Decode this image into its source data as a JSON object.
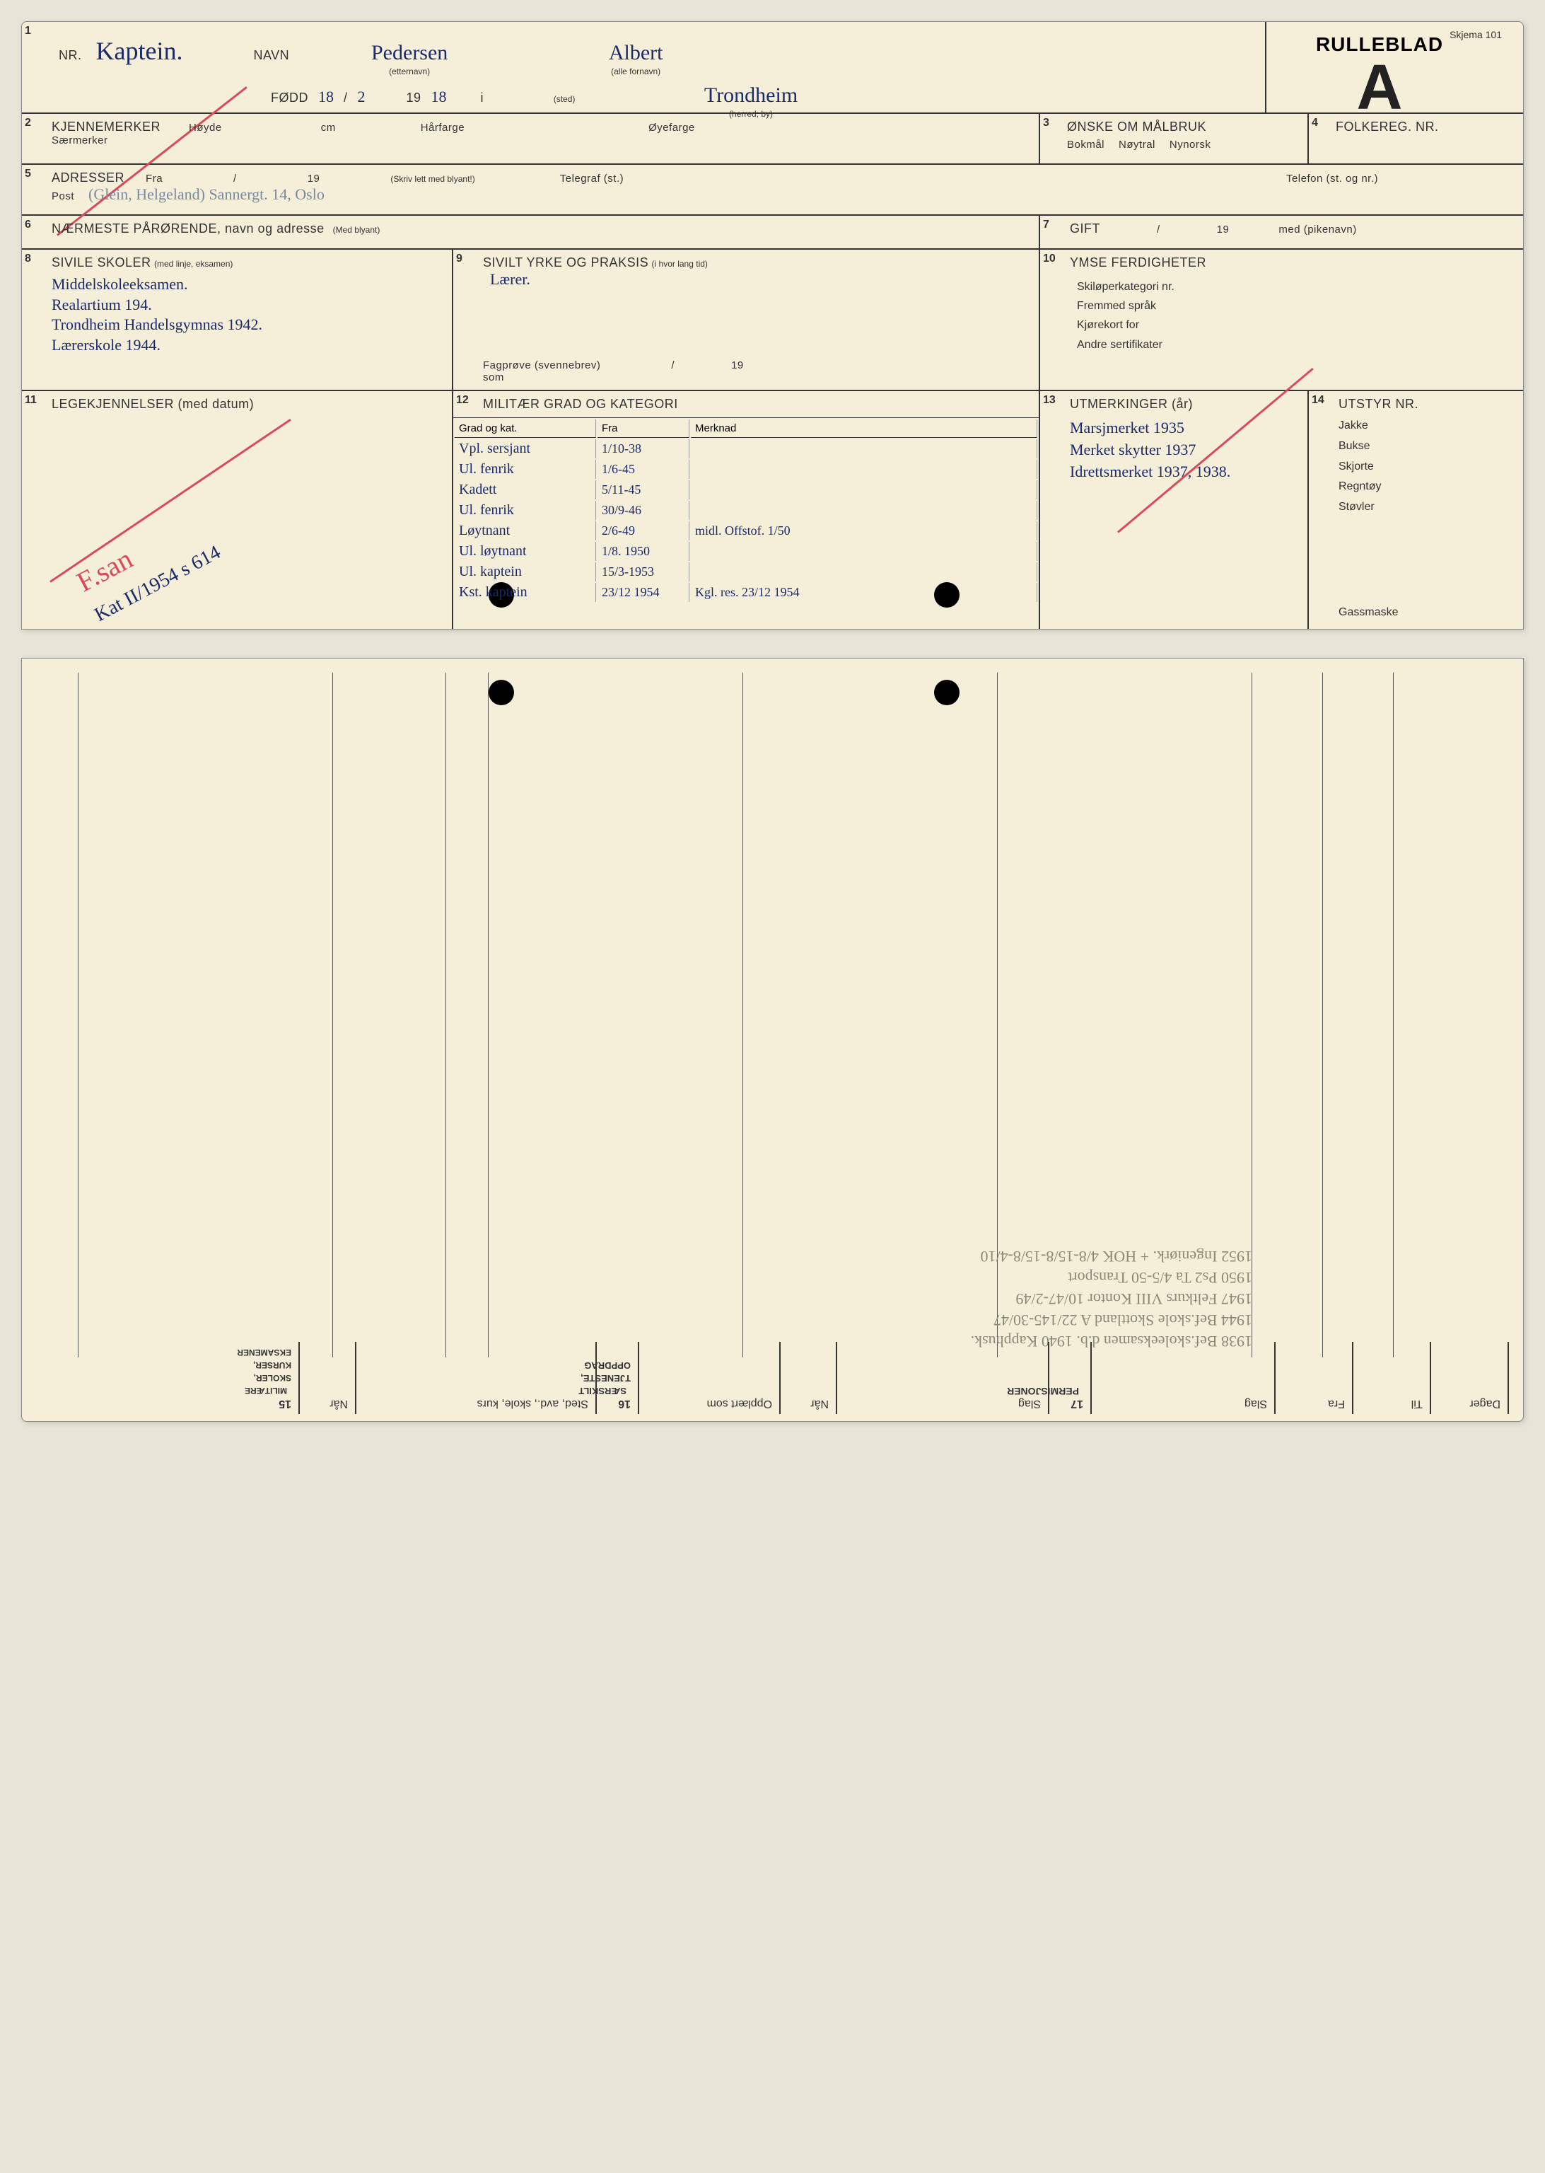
{
  "form_name": "Skjema 101",
  "title": "RULLEBLAD",
  "title_letter": "A",
  "section1": {
    "num": "1",
    "nr_label": "NR.",
    "nr_value": "Kaptein.",
    "navn_label": "NAVN",
    "etternavn_sub": "(etternavn)",
    "etternavn": "Pedersen",
    "fornavn_sub": "(alle fornavn)",
    "fornavn": "Albert",
    "fodd_label": "FØDD",
    "fodd_day": "18",
    "fodd_month": "2",
    "fodd_year_prefix": "19",
    "fodd_year": "18",
    "i_label": "i",
    "sted_sub": "(sted)",
    "by_sub": "(herred; by)",
    "by_value": "Trondheim"
  },
  "section2": {
    "num": "2",
    "label": "KJENNEMERKER",
    "hoyde": "Høyde",
    "cm": "cm",
    "harfarge": "Hårfarge",
    "oyefarge": "Øyefarge",
    "saermerker": "Særmerker"
  },
  "section3": {
    "num": "3",
    "label": "ØNSKE OM MÅLBRUK",
    "opt1": "Bokmål",
    "opt2": "Nøytral",
    "opt3": "Nynorsk"
  },
  "section4": {
    "num": "4",
    "label": "FOLKEREG. NR."
  },
  "section5": {
    "num": "5",
    "label": "ADRESSER",
    "fra": "Fra",
    "slash": "/",
    "year_prefix": "19",
    "note": "(Skriv lett med blyant!)",
    "telegraf": "Telegraf (st.)",
    "telefon": "Telefon (st. og nr.)",
    "post": "Post",
    "address_value": "(Glein, Helgeland)  Sannergt. 14, Oslo"
  },
  "section6": {
    "num": "6",
    "label": "NÆRMESTE PÅRØRENDE, navn og adresse",
    "sub": "(Med blyant)"
  },
  "section7": {
    "num": "7",
    "label": "GIFT",
    "slash": "/",
    "year_prefix": "19",
    "med": "med (pikenavn)"
  },
  "section8": {
    "num": "8",
    "label": "SIVILE SKOLER",
    "sub": "(med linje, eksamen)",
    "lines": [
      "Middelskoleeksamen.",
      "Realartium 194.",
      "Trondheim Handelsgymnas 1942.",
      "Lærerskole 1944."
    ]
  },
  "section9": {
    "num": "9",
    "label": "SIVILT YRKE OG PRAKSIS",
    "sub": "(i hvor lang tid)",
    "value": "Lærer.",
    "fagprove": "Fagprøve (svennebrev)",
    "slash": "/",
    "year_prefix": "19",
    "som": "som"
  },
  "section10": {
    "num": "10",
    "label": "YMSE FERDIGHETER",
    "items": [
      "Skiløperkategori nr.",
      "Fremmed språk",
      "Kjørekort for",
      "Andre sertifikater"
    ]
  },
  "section11": {
    "num": "11",
    "label": "LEGEKJENNELSER (med datum)",
    "annotation1": "F.san",
    "annotation2": "Kat II/1954 s 614"
  },
  "section12": {
    "num": "12",
    "label": "MILITÆR GRAD OG KATEGORI",
    "col1": "Grad og kat.",
    "col2": "Fra",
    "col3": "Merknad",
    "rows": [
      {
        "grad": "Vpl. sersjant",
        "fra": "1/10-38",
        "merk": ""
      },
      {
        "grad": "Ul. fenrik",
        "fra": "1/6-45",
        "merk": ""
      },
      {
        "grad": "Kadett",
        "fra": "5/11-45",
        "merk": ""
      },
      {
        "grad": "Ul. fenrik",
        "fra": "30/9-46",
        "merk": ""
      },
      {
        "grad": "Løytnant",
        "fra": "2/6-49",
        "merk": "midl. Offstof. 1/50"
      },
      {
        "grad": "Ul. løytnant",
        "fra": "1/8. 1950",
        "merk": ""
      },
      {
        "grad": "Ul. kaptein",
        "fra": "15/3-1953",
        "merk": ""
      },
      {
        "grad": "Kst. kaptein",
        "fra": "23/12 1954",
        "merk": "Kgl. res. 23/12 1954"
      }
    ]
  },
  "section13": {
    "num": "13",
    "label": "UTMERKINGER (år)",
    "lines": [
      "Marsjmerket 1935",
      "Merket skytter 1937",
      "Idrettsmerket 1937, 1938."
    ]
  },
  "section14": {
    "num": "14",
    "label": "UTSTYR NR.",
    "items": [
      "Jakke",
      "Bukse",
      "Skjorte",
      "Regntøy",
      "Støvler"
    ],
    "last": "Gassmaske"
  },
  "bottom": {
    "s15": {
      "num": "15",
      "label": "MILITÆRE SKOLER, KURSER, EKSAMENER",
      "cols": [
        "Når",
        "Sted, avd., skole, kurs"
      ]
    },
    "s16": {
      "num": "16",
      "label": "SÆRSKILT TJENESTE, OPPDRAG",
      "cols": [
        "Opplært som",
        "Når",
        "Slag"
      ]
    },
    "s17": {
      "num": "17",
      "label": "PERMISJONER",
      "cols": [
        "Slag",
        "Fra",
        "Til",
        "Dager"
      ]
    },
    "faded_entries": [
      "1938  Bef.skoleeksamen d.b.  1940  Kapphusk.",
      "1944  Bef.skole Skottland A  22/145-30/47",
      "1947  Feltkurs VIII  Kontor 10/47-2/49",
      "1950  Ps2 Ta 4/5-50  Transport",
      "1952  Ingeniørk. + HOK  4/8-15/8-15/8-4/10"
    ]
  },
  "colors": {
    "paper": "#f5eed8",
    "ink": "#333333",
    "hand_blue": "#1a2a6b",
    "hand_red": "#b83a4a",
    "red_line": "#d94a5a",
    "bg": "#e8e4d8"
  }
}
